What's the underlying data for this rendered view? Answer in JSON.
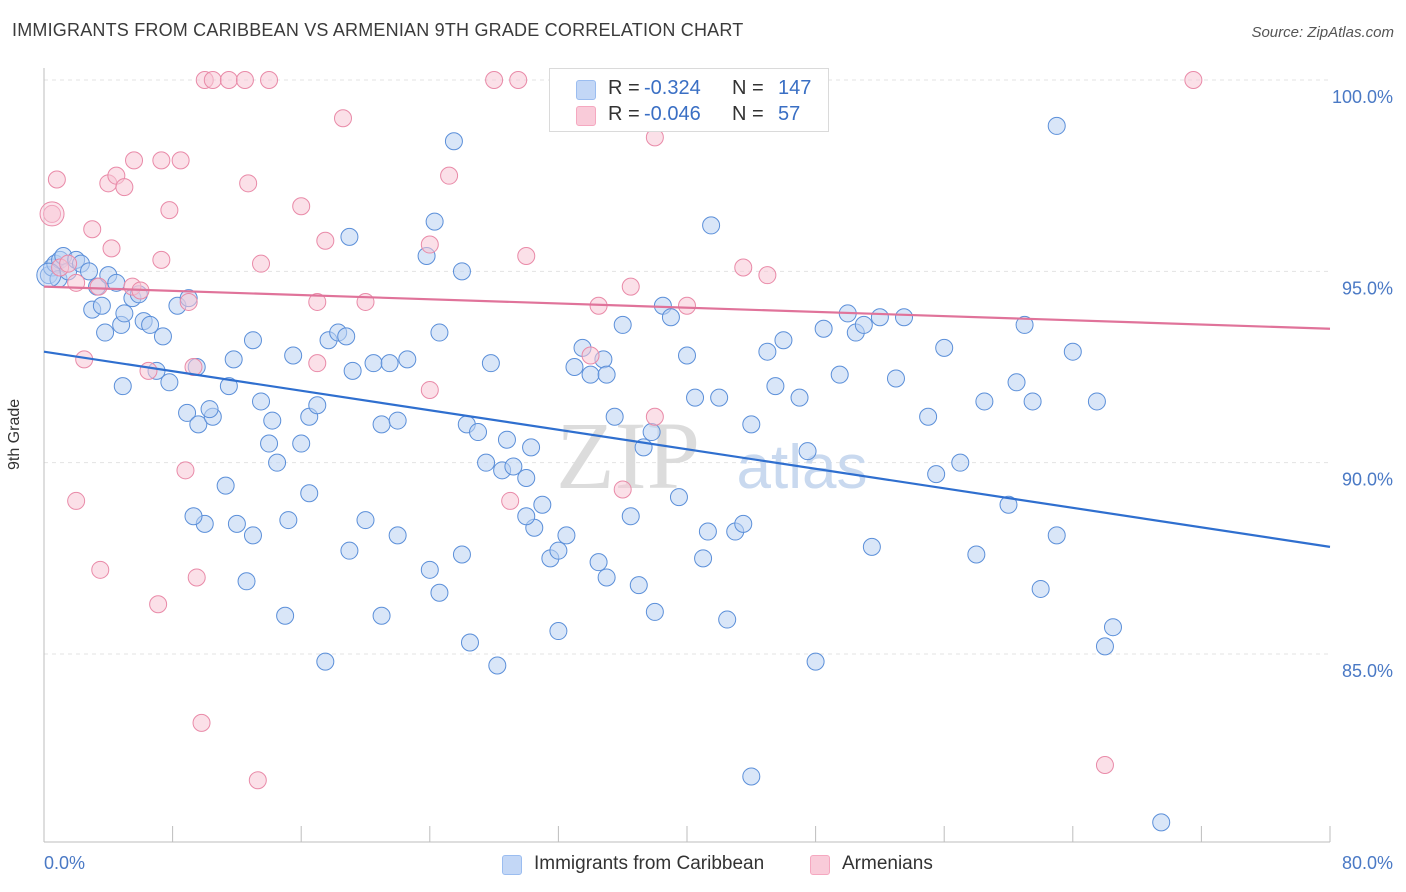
{
  "header": {
    "title": "IMMIGRANTS FROM CARIBBEAN VS ARMENIAN 9TH GRADE CORRELATION CHART",
    "source": "Source: ZipAtlas.com"
  },
  "watermark": {
    "zip": "ZIP",
    "atlas": "atlas"
  },
  "legend": {
    "rows": [
      {
        "r_label": "R =",
        "r_value": "-0.324",
        "n_label": "N =",
        "n_value": "147",
        "color": "#9bbdf0"
      },
      {
        "r_label": "R =",
        "r_value": "-0.046",
        "n_label": "N =",
        "n_value": "57",
        "color": "#f5a8c0"
      }
    ]
  },
  "bottom_legend": {
    "items": [
      {
        "label": "Immigrants from Caribbean",
        "color": "#9bbdf0"
      },
      {
        "label": "Armenians",
        "color": "#f5a8c0"
      }
    ]
  },
  "chart_data": {
    "type": "scatter",
    "title": "IMMIGRANTS FROM CARIBBEAN VS ARMENIAN 9TH GRADE CORRELATION CHART",
    "xlabel": "",
    "ylabel": "9th Grade",
    "xlim": [
      0,
      80
    ],
    "ylim": [
      80.5,
      100.5
    ],
    "x_tick_labels": [
      "0.0%",
      "80.0%"
    ],
    "y_ticks": [
      85,
      90,
      95,
      100
    ],
    "y_tick_labels": [
      "85.0%",
      "90.0%",
      "95.0%",
      "100.0%"
    ],
    "grid": true,
    "legend_position": "top-center",
    "series": [
      {
        "name": "Immigrants from Caribbean",
        "color": "#5b8fd9",
        "fill": "#b9d1f3",
        "trend": {
          "x": [
            0,
            80
          ],
          "y": [
            92.9,
            87.8
          ],
          "color": "#2f6fcf"
        },
        "points": [
          [
            0.3,
            94.9
          ],
          [
            0.5,
            95.1
          ],
          [
            0.7,
            95.2
          ],
          [
            0.9,
            94.8
          ],
          [
            1.0,
            95.3
          ],
          [
            1.2,
            95.4
          ],
          [
            1.5,
            95.0
          ],
          [
            2.0,
            95.3
          ],
          [
            2.3,
            95.2
          ],
          [
            2.8,
            95.0
          ],
          [
            3.0,
            94.0
          ],
          [
            3.3,
            94.6
          ],
          [
            3.6,
            94.1
          ],
          [
            3.8,
            93.4
          ],
          [
            4.0,
            94.9
          ],
          [
            4.5,
            94.7
          ],
          [
            4.8,
            93.6
          ],
          [
            5.0,
            93.9
          ],
          [
            5.5,
            94.3
          ],
          [
            5.9,
            94.4
          ],
          [
            6.2,
            93.7
          ],
          [
            6.6,
            93.6
          ],
          [
            7.0,
            92.4
          ],
          [
            7.4,
            93.3
          ],
          [
            7.8,
            92.1
          ],
          [
            8.3,
            94.1
          ],
          [
            9.0,
            94.3
          ],
          [
            9.5,
            92.5
          ],
          [
            4.9,
            92.0
          ],
          [
            8.9,
            91.3
          ],
          [
            9.6,
            91.0
          ],
          [
            10.5,
            91.2
          ],
          [
            10.3,
            91.4
          ],
          [
            11.5,
            92.0
          ],
          [
            11.8,
            92.7
          ],
          [
            13.0,
            93.2
          ],
          [
            13.5,
            91.6
          ],
          [
            14.2,
            91.1
          ],
          [
            14.0,
            90.5
          ],
          [
            14.5,
            90.0
          ],
          [
            15.5,
            92.8
          ],
          [
            16.0,
            90.5
          ],
          [
            16.5,
            91.2
          ],
          [
            17.0,
            91.5
          ],
          [
            17.7,
            93.2
          ],
          [
            18.3,
            93.4
          ],
          [
            18.8,
            93.3
          ],
          [
            19.2,
            92.4
          ],
          [
            20.5,
            92.6
          ],
          [
            21.0,
            91.0
          ],
          [
            21.5,
            92.6
          ],
          [
            22.0,
            91.1
          ],
          [
            22.6,
            92.7
          ],
          [
            23.8,
            95.4
          ],
          [
            24.3,
            96.3
          ],
          [
            24.6,
            93.4
          ],
          [
            25.5,
            98.4
          ],
          [
            26.0,
            95.0
          ],
          [
            26.3,
            91.0
          ],
          [
            27.0,
            90.8
          ],
          [
            27.5,
            90.0
          ],
          [
            27.8,
            92.6
          ],
          [
            28.5,
            89.8
          ],
          [
            28.8,
            90.6
          ],
          [
            29.2,
            89.9
          ],
          [
            30.0,
            89.6
          ],
          [
            30.3,
            90.4
          ],
          [
            30.5,
            88.3
          ],
          [
            31.0,
            88.9
          ],
          [
            31.5,
            87.5
          ],
          [
            32.0,
            87.7
          ],
          [
            32.5,
            88.1
          ],
          [
            33.0,
            92.5
          ],
          [
            33.5,
            93.0
          ],
          [
            34.0,
            92.3
          ],
          [
            34.8,
            92.7
          ],
          [
            35.0,
            92.3
          ],
          [
            35.5,
            91.2
          ],
          [
            36.0,
            93.6
          ],
          [
            36.5,
            88.6
          ],
          [
            37.0,
            86.8
          ],
          [
            37.3,
            90.4
          ],
          [
            37.8,
            90.8
          ],
          [
            38.5,
            94.1
          ],
          [
            39.0,
            93.8
          ],
          [
            39.5,
            89.1
          ],
          [
            40.0,
            92.8
          ],
          [
            40.5,
            91.7
          ],
          [
            41.0,
            87.5
          ],
          [
            41.3,
            88.2
          ],
          [
            42.0,
            91.7
          ],
          [
            43.0,
            88.2
          ],
          [
            43.5,
            88.4
          ],
          [
            44.0,
            91.0
          ],
          [
            45.0,
            92.9
          ],
          [
            45.5,
            92.0
          ],
          [
            46.0,
            93.2
          ],
          [
            47.0,
            91.7
          ],
          [
            47.5,
            90.3
          ],
          [
            48.5,
            93.5
          ],
          [
            49.5,
            92.3
          ],
          [
            50.0,
            93.9
          ],
          [
            50.5,
            93.4
          ],
          [
            51.0,
            93.6
          ],
          [
            52.0,
            93.8
          ],
          [
            53.0,
            92.2
          ],
          [
            53.5,
            93.8
          ],
          [
            55.0,
            91.2
          ],
          [
            56.0,
            93.0
          ],
          [
            57.0,
            90.0
          ],
          [
            58.5,
            91.6
          ],
          [
            60.5,
            92.1
          ],
          [
            61.5,
            91.6
          ],
          [
            63.0,
            88.1
          ],
          [
            62.0,
            86.7
          ],
          [
            65.5,
            91.6
          ],
          [
            66.5,
            85.7
          ],
          [
            66.0,
            85.2
          ],
          [
            69.5,
            80.6
          ],
          [
            63.0,
            98.8
          ],
          [
            41.5,
            96.2
          ],
          [
            19.0,
            95.9
          ],
          [
            12.6,
            86.9
          ],
          [
            15.0,
            86.0
          ],
          [
            17.5,
            84.8
          ],
          [
            19.0,
            87.7
          ],
          [
            21.0,
            86.0
          ],
          [
            24.6,
            86.6
          ],
          [
            26.5,
            85.3
          ],
          [
            28.2,
            84.7
          ],
          [
            32.0,
            85.6
          ],
          [
            35.0,
            87.0
          ],
          [
            38.0,
            86.1
          ],
          [
            44.0,
            81.8
          ],
          [
            11.3,
            89.4
          ],
          [
            12.0,
            88.4
          ],
          [
            10.0,
            88.4
          ],
          [
            9.3,
            88.6
          ],
          [
            13.0,
            88.1
          ],
          [
            15.2,
            88.5
          ],
          [
            16.5,
            89.2
          ],
          [
            20.0,
            88.5
          ],
          [
            22.0,
            88.1
          ],
          [
            24.0,
            87.2
          ],
          [
            26.0,
            87.6
          ],
          [
            30.0,
            88.6
          ],
          [
            34.5,
            87.4
          ],
          [
            42.5,
            85.9
          ],
          [
            48.0,
            84.8
          ],
          [
            51.5,
            87.8
          ],
          [
            55.5,
            89.7
          ],
          [
            58.0,
            87.6
          ],
          [
            60.0,
            88.9
          ],
          [
            64.0,
            92.9
          ],
          [
            61.0,
            93.6
          ]
        ]
      },
      {
        "name": "Armenians",
        "color": "#e98aa8",
        "fill": "#f8c6d6",
        "trend": {
          "x": [
            0,
            80
          ],
          "y": [
            94.6,
            93.5
          ],
          "color": "#e0739a"
        },
        "points": [
          [
            0.5,
            96.5
          ],
          [
            0.8,
            97.4
          ],
          [
            1.0,
            95.1
          ],
          [
            1.5,
            95.2
          ],
          [
            2.0,
            94.7
          ],
          [
            3.0,
            96.1
          ],
          [
            3.4,
            94.6
          ],
          [
            4.0,
            97.3
          ],
          [
            4.5,
            97.5
          ],
          [
            5.0,
            97.2
          ],
          [
            5.6,
            97.9
          ],
          [
            7.3,
            97.9
          ],
          [
            7.8,
            96.6
          ],
          [
            8.5,
            97.9
          ],
          [
            10.0,
            100.0
          ],
          [
            10.5,
            100.0
          ],
          [
            11.5,
            100.0
          ],
          [
            12.5,
            100.0
          ],
          [
            14.0,
            100.0
          ],
          [
            18.6,
            99.0
          ],
          [
            25.2,
            97.5
          ],
          [
            28.0,
            100.0
          ],
          [
            29.5,
            100.0
          ],
          [
            32.0,
            100.0
          ],
          [
            38.0,
            98.5
          ],
          [
            71.5,
            100.0
          ],
          [
            12.7,
            97.3
          ],
          [
            16.0,
            96.7
          ],
          [
            17.5,
            95.8
          ],
          [
            20.0,
            94.2
          ],
          [
            24.0,
            95.7
          ],
          [
            4.2,
            95.6
          ],
          [
            5.5,
            94.6
          ],
          [
            6.0,
            94.5
          ],
          [
            7.3,
            95.3
          ],
          [
            9.0,
            94.2
          ],
          [
            13.5,
            95.2
          ],
          [
            17.0,
            94.2
          ],
          [
            30.0,
            95.4
          ],
          [
            34.5,
            94.1
          ],
          [
            36.5,
            94.6
          ],
          [
            40.0,
            94.1
          ],
          [
            45.0,
            94.9
          ],
          [
            34.0,
            92.8
          ],
          [
            38.0,
            91.2
          ],
          [
            24.0,
            91.9
          ],
          [
            17.0,
            92.6
          ],
          [
            2.5,
            92.7
          ],
          [
            6.5,
            92.4
          ],
          [
            9.3,
            92.5
          ],
          [
            2.0,
            89.0
          ],
          [
            8.8,
            89.8
          ],
          [
            9.5,
            87.0
          ],
          [
            3.5,
            87.2
          ],
          [
            7.1,
            86.3
          ],
          [
            29.0,
            89.0
          ],
          [
            36.0,
            89.3
          ],
          [
            43.5,
            95.1
          ],
          [
            9.8,
            83.2
          ],
          [
            13.3,
            81.7
          ],
          [
            66.0,
            82.1
          ]
        ]
      }
    ]
  }
}
